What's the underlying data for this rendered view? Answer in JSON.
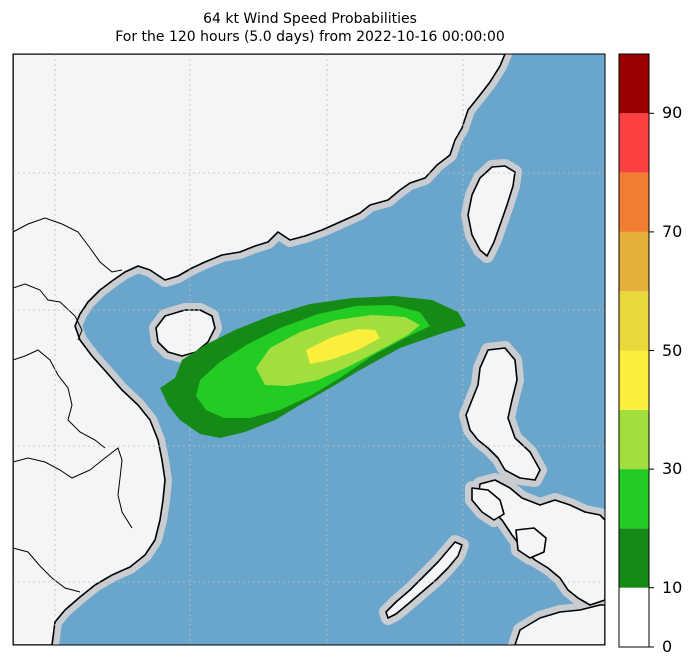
{
  "title_line1": "64 kt Wind Speed Probabilities",
  "title_line2": "For the 120 hours (5.0 days) from 2022-10-16 00:00:00",
  "colors": {
    "ocean": "#6aa6cc",
    "land": "#f4f5f7",
    "coast_halo": [
      "#c9ccd1",
      "#a9aeb6"
    ],
    "coastline": "#000000"
  },
  "colorbar": {
    "levels": [
      0,
      10,
      20,
      30,
      40,
      50,
      60,
      70,
      80,
      90,
      100
    ],
    "colors": [
      "#ffffff",
      "#168a16",
      "#22cc22",
      "#a2df3e",
      "#fbef3b",
      "#e8d83c",
      "#e6ae3a",
      "#f07d32",
      "#fb4141",
      "#990000",
      "#7f2cde"
    ],
    "tick_labels": [
      "0",
      "10",
      "30",
      "50",
      "70",
      "90"
    ]
  },
  "probability_contours": [
    {
      "range": "0-10",
      "color": "#168a16"
    },
    {
      "range": "10-20",
      "color": "#22cc22"
    },
    {
      "range": "20-30",
      "color": "#a2df3e"
    },
    {
      "range": "30-40",
      "color": "#fbef3b"
    }
  ]
}
